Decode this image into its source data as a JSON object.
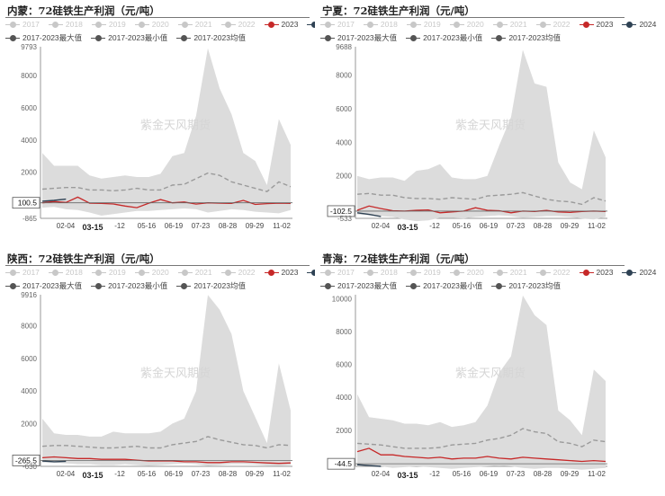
{
  "colors": {
    "band": "#dcdcdc",
    "avg": "#9a9a9a",
    "s2023": "#c62828",
    "s2024": "#2f4254",
    "legend_dim": "#c8c8c8",
    "legend_dark": "#555555"
  },
  "legend": {
    "row1": [
      {
        "name": "2017",
        "dim": true
      },
      {
        "name": "2018",
        "dim": true
      },
      {
        "name": "2019",
        "dim": true
      },
      {
        "name": "2020",
        "dim": true
      },
      {
        "name": "2021",
        "dim": true
      },
      {
        "name": "2022",
        "dim": true
      },
      {
        "name": "2023",
        "color": "#c62828"
      },
      {
        "name": "2024",
        "color": "#2f4254"
      }
    ],
    "row2": [
      {
        "name": "2017-2023最大值"
      },
      {
        "name": "2017-2023最小值"
      },
      {
        "name": "2017-2023均值"
      }
    ]
  },
  "watermark": "紫金天风期货",
  "chart_data": [
    {
      "type": "area",
      "title": "内蒙：72硅铁生产利润（元/吨）",
      "x_ticks": [
        "02-04",
        "03-15",
        "-12",
        "05-16",
        "06-19",
        "07-23",
        "08-28",
        "09-29",
        "11-02"
      ],
      "x_highlight": "03-15",
      "y_ticks": [
        9793,
        8000,
        6000,
        4000,
        2000,
        100.5,
        -865
      ],
      "ylim": [
        -865,
        9793
      ],
      "cursor_value": 100.5,
      "series": {
        "max": [
          3200,
          2400,
          2400,
          2400,
          1800,
          1600,
          1700,
          1800,
          1700,
          1700,
          1900,
          3000,
          3200,
          5500,
          9700,
          7200,
          5600,
          3200,
          2700,
          1200,
          5300,
          3700
        ],
        "min": [
          -200,
          -150,
          -300,
          -350,
          -500,
          -700,
          -600,
          -500,
          -400,
          -400,
          -350,
          -300,
          -250,
          -300,
          -500,
          -400,
          -300,
          -350,
          -450,
          -500,
          -550,
          -350
        ],
        "avg": [
          950,
          1000,
          1050,
          1050,
          900,
          900,
          850,
          900,
          1000,
          900,
          900,
          1200,
          1250,
          1600,
          1950,
          1800,
          1400,
          1200,
          1000,
          800,
          1400,
          1100
        ],
        "s2023": [
          100,
          180,
          120,
          450,
          80,
          60,
          30,
          -100,
          -200,
          80,
          300,
          100,
          150,
          20,
          100,
          80,
          60,
          250,
          0,
          50,
          80,
          60
        ],
        "s2024": [
          200,
          250,
          330
        ]
      }
    },
    {
      "type": "area",
      "title": "宁夏：72硅铁生产利润（元/吨）",
      "x_ticks": [
        "02-04",
        "03-15",
        "-12",
        "05-16",
        "06-19",
        "07-23",
        "08-28",
        "09-29",
        "11-02"
      ],
      "x_highlight": "03-15",
      "y_ticks": [
        9688,
        8000,
        6000,
        4000,
        2000,
        -102.5,
        -533
      ],
      "ylim": [
        -533,
        9688
      ],
      "cursor_value": -102.5,
      "series": {
        "max": [
          2000,
          1800,
          1900,
          1900,
          1700,
          2300,
          2400,
          2700,
          1900,
          1800,
          1800,
          2000,
          3800,
          5500,
          9500,
          7500,
          7300,
          2800,
          1600,
          1200,
          4700,
          3100
        ],
        "min": [
          -300,
          -350,
          -400,
          -450,
          -600,
          -700,
          -650,
          -500,
          -500,
          -550,
          -450,
          -400,
          -350,
          -400,
          -500,
          -450,
          -400,
          -400,
          -450,
          -550,
          -600,
          -450
        ],
        "avg": [
          900,
          950,
          850,
          850,
          700,
          650,
          650,
          600,
          700,
          650,
          600,
          800,
          850,
          900,
          1000,
          800,
          600,
          500,
          450,
          300,
          700,
          500
        ],
        "s2023": [
          -50,
          200,
          50,
          -80,
          -100,
          -50,
          -30,
          -200,
          -150,
          -100,
          100,
          -50,
          -80,
          -200,
          -100,
          -120,
          -60,
          -150,
          -180,
          -120,
          -100,
          -120
        ],
        "s2024": [
          -200,
          -300,
          -420
        ]
      }
    },
    {
      "type": "area",
      "title": "陕西：72硅铁生产利润（元/吨）",
      "x_ticks": [
        "02-04",
        "03-15",
        "-12",
        "05-16",
        "06-19",
        "07-23",
        "08-28",
        "09-29",
        "11-02"
      ],
      "x_highlight": "03-15",
      "y_ticks": [
        9916,
        8000,
        6000,
        4000,
        2000,
        -265.5,
        -630
      ],
      "ylim": [
        -630,
        9916
      ],
      "cursor_value": -265.5,
      "series": {
        "max": [
          2300,
          1400,
          1300,
          1300,
          1200,
          1200,
          1500,
          1400,
          1400,
          1400,
          1500,
          2000,
          2300,
          4000,
          9900,
          9000,
          7500,
          4000,
          2400,
          800,
          5700,
          2800
        ],
        "min": [
          -400,
          -400,
          -450,
          -500,
          -500,
          -550,
          -550,
          -500,
          -550,
          -600,
          -550,
          -500,
          -450,
          -500,
          -600,
          -550,
          -500,
          -500,
          -520,
          -580,
          -600,
          -550
        ],
        "avg": [
          600,
          650,
          650,
          600,
          550,
          500,
          500,
          550,
          600,
          500,
          500,
          700,
          800,
          900,
          1200,
          1000,
          850,
          700,
          650,
          500,
          700,
          650
        ],
        "s2023": [
          -100,
          -50,
          -100,
          -150,
          -150,
          -200,
          -200,
          -200,
          -250,
          -300,
          -300,
          -300,
          -350,
          -350,
          -400,
          -400,
          -350,
          -350,
          -380,
          -420,
          -450,
          -420
        ],
        "s2024": [
          -300,
          -350,
          -320
        ]
      }
    },
    {
      "type": "area",
      "title": "青海：72硅铁生产利润（元/吨）",
      "x_ticks": [
        "02-04",
        "03-15",
        "-12",
        "05-16",
        "06-19",
        "07-23",
        "08-28",
        "09-29",
        "11-02"
      ],
      "x_highlight": "03-15",
      "y_ticks": [
        10000,
        8000,
        6000,
        4000,
        2000,
        -44.5
      ],
      "ylim": [
        -200,
        10250
      ],
      "cursor_value": -44.5,
      "series": {
        "max": [
          4200,
          2800,
          2700,
          2600,
          2400,
          2400,
          2300,
          2500,
          2200,
          2300,
          2500,
          3500,
          5500,
          6500,
          10200,
          9000,
          8400,
          3200,
          2600,
          1700,
          5700,
          5000
        ],
        "min": [
          -100,
          -150,
          -200,
          -300,
          -250,
          -200,
          -250,
          -300,
          -350,
          -300,
          -250,
          -200,
          -150,
          -200,
          -300,
          -350,
          -300,
          -300,
          -350,
          -400,
          -350,
          -300
        ],
        "avg": [
          1200,
          1150,
          1100,
          1000,
          900,
          900,
          900,
          950,
          1100,
          1150,
          1200,
          1400,
          1500,
          1700,
          2100,
          1900,
          1800,
          1300,
          1200,
          1000,
          1400,
          1300
        ],
        "s2023": [
          700,
          900,
          500,
          500,
          400,
          350,
          300,
          350,
          250,
          300,
          300,
          400,
          300,
          250,
          350,
          300,
          250,
          200,
          150,
          100,
          150,
          100
        ],
        "s2024": [
          -100,
          -150,
          -200
        ]
      }
    }
  ]
}
